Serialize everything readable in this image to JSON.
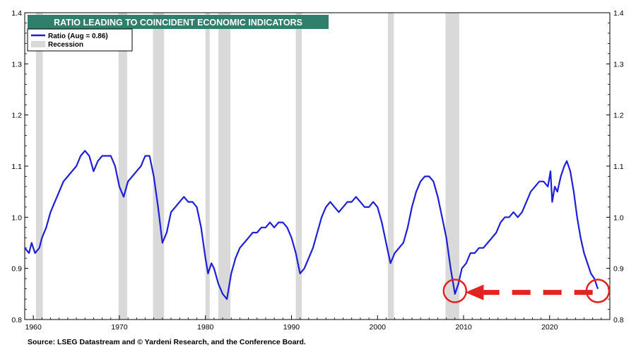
{
  "chart_data": {
    "type": "line",
    "title": "RATIO LEADING TO COINCIDENT ECONOMIC INDICATORS",
    "source": "Source: LSEG Datastream and © Yardeni Research, and the Conference Board.",
    "legend": {
      "placement": "top-left",
      "series_label": "Ratio  (Aug = 0.86)",
      "recession_label": "Recession"
    },
    "xlim": [
      1959.0,
      2027.0
    ],
    "ylim": [
      0.8,
      1.4
    ],
    "x_ticks": [
      1960,
      1970,
      1980,
      1990,
      2000,
      2010,
      2020
    ],
    "x_tick_labels": [
      "1960",
      "1970",
      "1980",
      "1990",
      "2000",
      "2010",
      "2020"
    ],
    "y_ticks": [
      0.8,
      0.9,
      1.0,
      1.1,
      1.2,
      1.3,
      1.4
    ],
    "y_tick_labels": [
      "0.8",
      "0.9",
      "1.0",
      "1.1",
      "1.2",
      "1.3",
      "1.4"
    ],
    "grid": false,
    "colors": {
      "title_bg": "#2f7f6c",
      "title_text": "#ffffff",
      "series": "#1f1fd6",
      "recession": "#d9d9d9",
      "annotation": "#e32222",
      "axis": "#000000"
    },
    "recessions": [
      [
        1960.3,
        1961.1
      ],
      [
        1969.9,
        1970.9
      ],
      [
        1973.9,
        1975.2
      ],
      [
        1980.0,
        1980.5
      ],
      [
        1981.5,
        1982.9
      ],
      [
        1990.5,
        1991.2
      ],
      [
        2001.2,
        2001.9
      ],
      [
        2007.9,
        2009.5
      ]
    ],
    "series": [
      {
        "name": "Ratio  (Aug = 0.86)",
        "points": [
          [
            1959.0,
            0.94
          ],
          [
            1959.5,
            0.93
          ],
          [
            1959.8,
            0.95
          ],
          [
            1960.2,
            0.93
          ],
          [
            1960.7,
            0.94
          ],
          [
            1961.0,
            0.96
          ],
          [
            1961.5,
            0.98
          ],
          [
            1962.0,
            1.01
          ],
          [
            1962.5,
            1.03
          ],
          [
            1963.0,
            1.05
          ],
          [
            1963.5,
            1.07
          ],
          [
            1964.0,
            1.08
          ],
          [
            1964.5,
            1.09
          ],
          [
            1965.0,
            1.1
          ],
          [
            1965.5,
            1.12
          ],
          [
            1966.0,
            1.13
          ],
          [
            1966.5,
            1.12
          ],
          [
            1967.0,
            1.09
          ],
          [
            1967.5,
            1.11
          ],
          [
            1968.0,
            1.12
          ],
          [
            1968.5,
            1.12
          ],
          [
            1969.0,
            1.12
          ],
          [
            1969.5,
            1.1
          ],
          [
            1970.0,
            1.06
          ],
          [
            1970.5,
            1.04
          ],
          [
            1971.0,
            1.07
          ],
          [
            1971.5,
            1.08
          ],
          [
            1972.0,
            1.09
          ],
          [
            1972.5,
            1.1
          ],
          [
            1973.0,
            1.12
          ],
          [
            1973.5,
            1.12
          ],
          [
            1974.0,
            1.08
          ],
          [
            1974.5,
            1.02
          ],
          [
            1975.0,
            0.95
          ],
          [
            1975.5,
            0.97
          ],
          [
            1976.0,
            1.01
          ],
          [
            1976.5,
            1.02
          ],
          [
            1977.0,
            1.03
          ],
          [
            1977.5,
            1.04
          ],
          [
            1978.0,
            1.03
          ],
          [
            1978.5,
            1.03
          ],
          [
            1979.0,
            1.02
          ],
          [
            1979.5,
            0.98
          ],
          [
            1980.0,
            0.92
          ],
          [
            1980.3,
            0.89
          ],
          [
            1980.7,
            0.91
          ],
          [
            1981.0,
            0.9
          ],
          [
            1981.5,
            0.87
          ],
          [
            1982.0,
            0.85
          ],
          [
            1982.5,
            0.84
          ],
          [
            1983.0,
            0.89
          ],
          [
            1983.5,
            0.92
          ],
          [
            1984.0,
            0.94
          ],
          [
            1984.5,
            0.95
          ],
          [
            1985.0,
            0.96
          ],
          [
            1985.5,
            0.97
          ],
          [
            1986.0,
            0.97
          ],
          [
            1986.5,
            0.98
          ],
          [
            1987.0,
            0.98
          ],
          [
            1987.5,
            0.99
          ],
          [
            1988.0,
            0.98
          ],
          [
            1988.5,
            0.99
          ],
          [
            1989.0,
            0.99
          ],
          [
            1989.5,
            0.98
          ],
          [
            1990.0,
            0.96
          ],
          [
            1990.5,
            0.93
          ],
          [
            1991.0,
            0.89
          ],
          [
            1991.5,
            0.9
          ],
          [
            1992.0,
            0.92
          ],
          [
            1992.5,
            0.94
          ],
          [
            1993.0,
            0.97
          ],
          [
            1993.5,
            1.0
          ],
          [
            1994.0,
            1.02
          ],
          [
            1994.5,
            1.03
          ],
          [
            1995.0,
            1.02
          ],
          [
            1995.5,
            1.01
          ],
          [
            1996.0,
            1.02
          ],
          [
            1996.5,
            1.03
          ],
          [
            1997.0,
            1.03
          ],
          [
            1997.5,
            1.04
          ],
          [
            1998.0,
            1.03
          ],
          [
            1998.5,
            1.02
          ],
          [
            1999.0,
            1.02
          ],
          [
            1999.5,
            1.03
          ],
          [
            2000.0,
            1.02
          ],
          [
            2000.5,
            0.99
          ],
          [
            2001.0,
            0.95
          ],
          [
            2001.5,
            0.91
          ],
          [
            2002.0,
            0.93
          ],
          [
            2002.5,
            0.94
          ],
          [
            2003.0,
            0.95
          ],
          [
            2003.5,
            0.98
          ],
          [
            2004.0,
            1.02
          ],
          [
            2004.5,
            1.05
          ],
          [
            2005.0,
            1.07
          ],
          [
            2005.5,
            1.08
          ],
          [
            2006.0,
            1.08
          ],
          [
            2006.5,
            1.07
          ],
          [
            2007.0,
            1.04
          ],
          [
            2007.5,
            1.0
          ],
          [
            2008.0,
            0.96
          ],
          [
            2008.5,
            0.9
          ],
          [
            2009.0,
            0.85
          ],
          [
            2009.4,
            0.87
          ],
          [
            2009.8,
            0.9
          ],
          [
            2010.3,
            0.91
          ],
          [
            2010.8,
            0.93
          ],
          [
            2011.3,
            0.93
          ],
          [
            2011.8,
            0.94
          ],
          [
            2012.3,
            0.94
          ],
          [
            2012.8,
            0.95
          ],
          [
            2013.3,
            0.96
          ],
          [
            2013.8,
            0.97
          ],
          [
            2014.3,
            0.99
          ],
          [
            2014.8,
            1.0
          ],
          [
            2015.3,
            1.0
          ],
          [
            2015.8,
            1.01
          ],
          [
            2016.3,
            1.0
          ],
          [
            2016.8,
            1.01
          ],
          [
            2017.3,
            1.03
          ],
          [
            2017.8,
            1.05
          ],
          [
            2018.3,
            1.06
          ],
          [
            2018.8,
            1.07
          ],
          [
            2019.3,
            1.07
          ],
          [
            2019.8,
            1.06
          ],
          [
            2020.1,
            1.09
          ],
          [
            2020.3,
            1.03
          ],
          [
            2020.6,
            1.06
          ],
          [
            2020.9,
            1.05
          ],
          [
            2021.3,
            1.08
          ],
          [
            2021.7,
            1.1
          ],
          [
            2022.0,
            1.11
          ],
          [
            2022.4,
            1.09
          ],
          [
            2022.8,
            1.05
          ],
          [
            2023.2,
            1.0
          ],
          [
            2023.6,
            0.96
          ],
          [
            2024.0,
            0.93
          ],
          [
            2024.4,
            0.91
          ],
          [
            2024.8,
            0.89
          ],
          [
            2025.2,
            0.88
          ],
          [
            2025.6,
            0.86
          ]
        ]
      }
    ],
    "annotations": {
      "circles": [
        [
          2009.0,
          0.856
        ],
        [
          2025.6,
          0.856
        ]
      ],
      "arrow": {
        "from": [
          2025.0,
          0.853
        ],
        "to": [
          2010.2,
          0.853
        ]
      }
    }
  }
}
